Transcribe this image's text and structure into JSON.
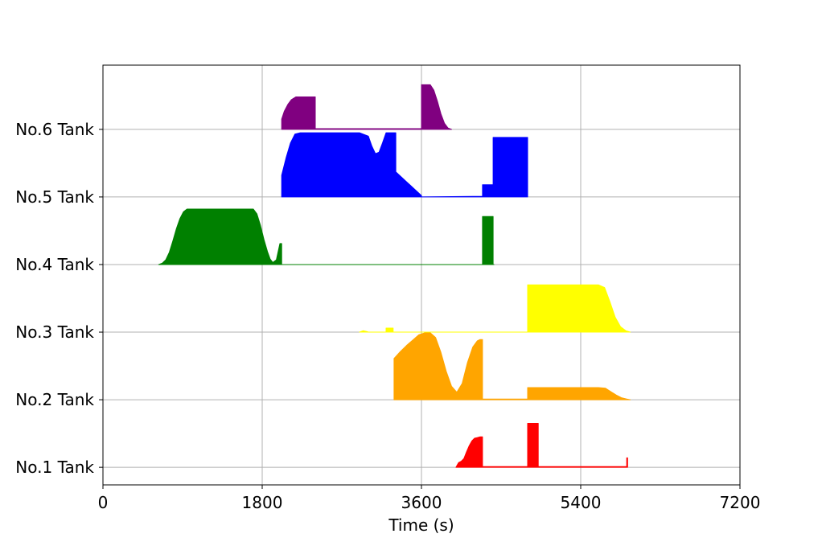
{
  "chart_data": {
    "type": "area",
    "title": "",
    "xlabel": "Time (s)",
    "ylabel": "",
    "xlim": [
      0,
      7200
    ],
    "x_ticks": [
      0,
      1800,
      3600,
      5400,
      7200
    ],
    "y_ticks": [
      {
        "value": 1,
        "label": "No.1 Tank"
      },
      {
        "value": 2,
        "label": "No.2 Tank"
      },
      {
        "value": 3,
        "label": "No.3 Tank"
      },
      {
        "value": 4,
        "label": "No.4 Tank"
      },
      {
        "value": 5,
        "label": "No.5 Tank"
      },
      {
        "value": 6,
        "label": "No.6 Tank"
      }
    ],
    "ylim": [
      0.74,
      6.95
    ],
    "grid": true,
    "series": [
      {
        "tank": 1,
        "color": "#ff0000",
        "x": [
          3990,
          4020,
          4050,
          4080,
          4110,
          4140,
          4170,
          4200,
          4230,
          4260,
          4280,
          4290,
          4290,
          4800,
          4800,
          4920,
          4920,
          5920,
          5920,
          5930,
          5930
        ],
        "y": [
          1.0,
          1.07,
          1.09,
          1.13,
          1.23,
          1.32,
          1.39,
          1.43,
          1.44,
          1.45,
          1.45,
          1.45,
          1.01,
          1.01,
          1.65,
          1.65,
          1.01,
          1.01,
          1.14,
          1.14,
          1.0
        ]
      },
      {
        "tank": 2,
        "color": "#ffa500",
        "x": [
          3290,
          3290,
          3360,
          3430,
          3500,
          3570,
          3640,
          3700,
          3760,
          3820,
          3880,
          3940,
          4000,
          4060,
          4120,
          4180,
          4230,
          4260,
          4280,
          4290,
          4290,
          4800,
          4800,
          5000,
          5300,
          5600,
          5680,
          5740,
          5800,
          5860,
          5920,
          5960
        ],
        "y": [
          2.0,
          2.61,
          2.71,
          2.8,
          2.88,
          2.96,
          2.99,
          2.99,
          2.92,
          2.7,
          2.42,
          2.2,
          2.11,
          2.24,
          2.55,
          2.78,
          2.87,
          2.89,
          2.89,
          2.89,
          2.01,
          2.01,
          2.18,
          2.18,
          2.18,
          2.18,
          2.17,
          2.12,
          2.07,
          2.03,
          2.01,
          2.0
        ]
      },
      {
        "tank": 3,
        "color": "#ffff00",
        "x": [
          2900,
          2940,
          2980,
          3000,
          3200,
          3200,
          3280,
          3280,
          3290,
          4800,
          4800,
          5600,
          5670,
          5730,
          5790,
          5850,
          5910,
          5960
        ],
        "y": [
          3.0,
          3.02,
          3.01,
          3.0,
          3.0,
          3.06,
          3.06,
          3.0,
          3.0,
          3.0,
          3.7,
          3.7,
          3.66,
          3.45,
          3.22,
          3.08,
          3.02,
          3.0
        ],
        "extra_points_note": ""
      },
      {
        "tank": 4,
        "color": "#008000",
        "x": [
          630,
          670,
          710,
          750,
          790,
          830,
          870,
          910,
          950,
          1000,
          1050,
          1100,
          1700,
          1740,
          1780,
          1820,
          1860,
          1890,
          1920,
          1960,
          2000,
          2020,
          2020,
          4290,
          4290,
          4410,
          4410,
          4420
        ],
        "y": [
          4.0,
          4.02,
          4.07,
          4.18,
          4.35,
          4.53,
          4.68,
          4.78,
          4.82,
          4.82,
          4.82,
          4.82,
          4.82,
          4.75,
          4.58,
          4.37,
          4.19,
          4.08,
          4.03,
          4.07,
          4.31,
          4.31,
          4.0,
          4.0,
          4.71,
          4.71,
          4.0,
          4.0
        ]
      },
      {
        "tank": 5,
        "color": "#0000ff",
        "x": [
          2020,
          2020,
          2070,
          2120,
          2170,
          2230,
          2300,
          2500,
          2700,
          2900,
          3000,
          3040,
          3080,
          3120,
          3160,
          3200,
          3240,
          3280,
          3310,
          3310,
          3600,
          3600,
          4290,
          4290,
          4410,
          4410,
          4800,
          4800
        ],
        "y": [
          5.0,
          5.32,
          5.58,
          5.8,
          5.93,
          5.95,
          5.95,
          5.95,
          5.95,
          5.95,
          5.9,
          5.75,
          5.64,
          5.66,
          5.8,
          5.95,
          5.95,
          5.95,
          5.95,
          5.37,
          5.02,
          5.0,
          5.01,
          5.18,
          5.18,
          5.88,
          5.88,
          5.0
        ]
      },
      {
        "tank": 6,
        "color": "#800080",
        "x": [
          2020,
          2020,
          2050,
          2090,
          2130,
          2180,
          2240,
          2300,
          2400,
          2400,
          3600,
          3600,
          3700,
          3740,
          3780,
          3820,
          3860,
          3900,
          3940
        ],
        "y": [
          6.0,
          6.15,
          6.27,
          6.37,
          6.44,
          6.48,
          6.48,
          6.48,
          6.48,
          6.01,
          6.01,
          6.66,
          6.66,
          6.58,
          6.42,
          6.23,
          6.09,
          6.02,
          6.0
        ]
      }
    ]
  }
}
